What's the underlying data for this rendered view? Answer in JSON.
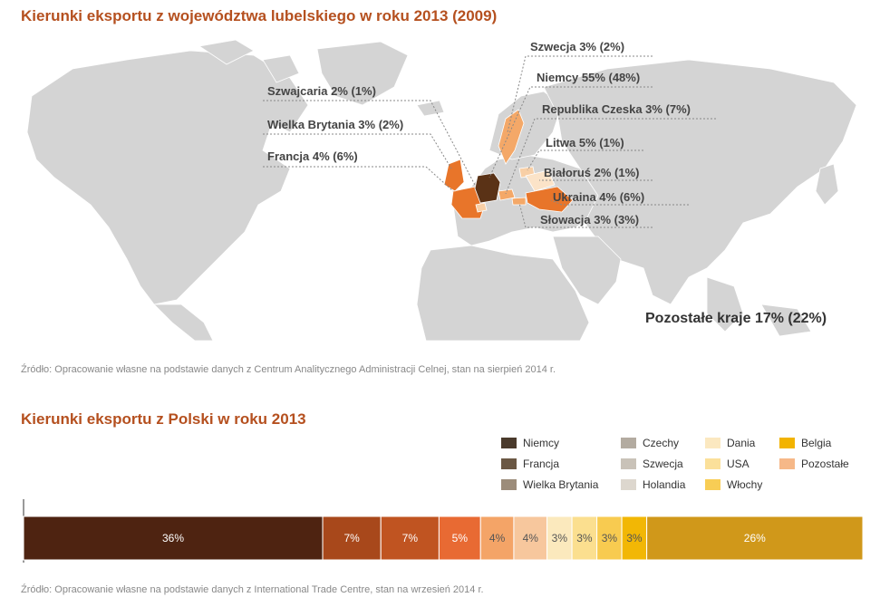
{
  "map_title": "Kierunki eksportu z województwa lubelskiego w roku 2013 (2009)",
  "map_source": "Źródło: Opracowanie własne na podstawie danych z Centrum Analitycznego Administracji Celnej, stan na sierpień 2014 r.",
  "map_labels": {
    "szwajcaria": "Szwajcaria 2% (1%)",
    "wielka_brytania": "Wielka Brytania 3% (2%)",
    "francja": "Francja 4% (6%)",
    "szwecja": "Szwecja 3% (2%)",
    "niemcy": "Niemcy 55% (48%)",
    "czechy": "Republika Czeska 3% (7%)",
    "litwa": "Litwa 5% (1%)",
    "bialorus": "Białoruś 2% (1%)",
    "ukraina": "Ukraina 4% (6%)",
    "slowacja": "Słowacja 3% (3%)",
    "pozostale": "Pozostałe kraje 17% (22%)"
  },
  "map_colors": {
    "land": "#d4d4d4",
    "niemcy": "#5a3216",
    "highlight": "#e8752a",
    "light": "#f4a868",
    "pale": "#f8cfa6",
    "leader": "#888888"
  },
  "chart_title": "Kierunki eksportu z Polski w roku 2013",
  "chart_source": "Źródło: Opracowanie własne na podstawie danych z International Trade Centre, stan na wrzesień 2014 r.",
  "chart_data": {
    "type": "bar",
    "orientation": "stacked-horizontal",
    "series": [
      {
        "name": "Niemcy",
        "value": 36,
        "label": "36%",
        "color": "#4e2311"
      },
      {
        "name": "Francja",
        "value": 7,
        "label": "7%",
        "color": "#a8481b"
      },
      {
        "name": "Wielka Brytania",
        "value": 7,
        "label": "7%",
        "color": "#c05421"
      },
      {
        "name": "Czechy",
        "value": 5,
        "label": "5%",
        "color": "#e86a33"
      },
      {
        "name": "Szwecja",
        "value": 4,
        "label": "4%",
        "color": "#f4a467"
      },
      {
        "name": "Holandia",
        "value": 4,
        "label": "4%",
        "color": "#f7c79d"
      },
      {
        "name": "Dania",
        "value": 3,
        "label": "3%",
        "color": "#fbe9bd"
      },
      {
        "name": "USA",
        "value": 3,
        "label": "3%",
        "color": "#fbdf8f"
      },
      {
        "name": "Włochy",
        "value": 3,
        "label": "3%",
        "color": "#f8cb50"
      },
      {
        "name": "Belgia",
        "value": 3,
        "label": "3%",
        "color": "#f2b705"
      },
      {
        "name": "Pozostałe",
        "value": 26,
        "label": "26%",
        "color": "#d0981a"
      }
    ],
    "legend": [
      {
        "name": "Niemcy",
        "color": "#4a3a2c"
      },
      {
        "name": "Francja",
        "color": "#6b5844"
      },
      {
        "name": "Wielka Brytania",
        "color": "#9c8c7a"
      },
      {
        "name": "Czechy",
        "color": "#b3aba0"
      },
      {
        "name": "Szwecja",
        "color": "#c9c2b8"
      },
      {
        "name": "Holandia",
        "color": "#ddd7ce"
      },
      {
        "name": "Dania",
        "color": "#fbe8c0"
      },
      {
        "name": "USA",
        "color": "#fbe09a"
      },
      {
        "name": "Włochy",
        "color": "#f8cd55"
      },
      {
        "name": "Belgia",
        "color": "#f2b300"
      },
      {
        "name": "Pozostałe",
        "color": "#f6b888"
      }
    ],
    "legend_position": "top-right"
  }
}
